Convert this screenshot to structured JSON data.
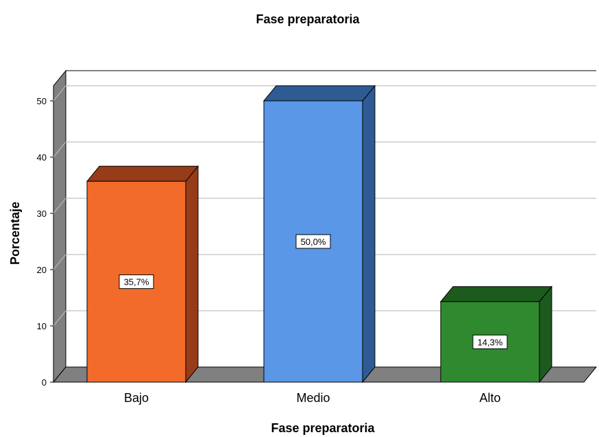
{
  "chart_data": {
    "type": "bar",
    "title": "Fase preparatoria",
    "xlabel": "Fase preparatoria",
    "ylabel": "Porcentaje",
    "categories": [
      "Bajo",
      "Medio",
      "Alto"
    ],
    "values": [
      35.7,
      50.0,
      14.3
    ],
    "data_labels": [
      "35,7%",
      "50,0%",
      "14,3%"
    ],
    "yticks": [
      0,
      10,
      20,
      30,
      40,
      50
    ],
    "ylim": [
      0,
      52.5
    ],
    "grid": true,
    "legend": "none",
    "colors": {
      "front": [
        "#f26b2b",
        "#5a97e6",
        "#2f8a2f"
      ],
      "side": [
        "#963c18",
        "#2f5b95",
        "#1d5a1d"
      ],
      "top": [
        "#963c18",
        "#2f5b95",
        "#1d5a1d"
      ],
      "wall": "#808080",
      "gridline": "#c0c0c0"
    }
  }
}
